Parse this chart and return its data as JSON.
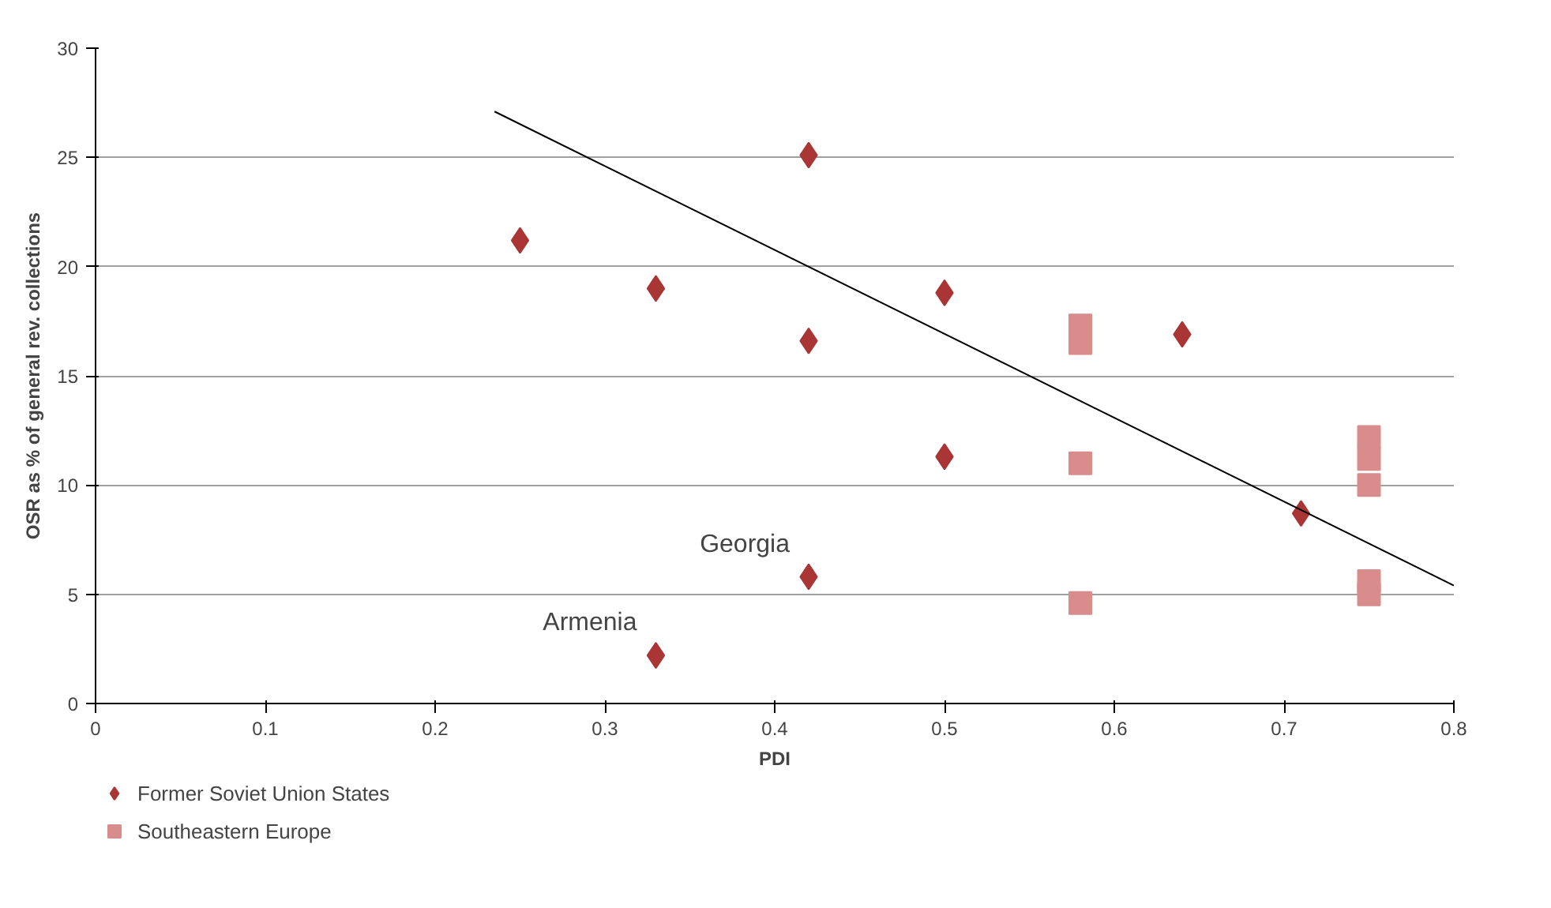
{
  "chart_data": {
    "type": "scatter",
    "xlabel": "PDI",
    "ylabel": "OSR as % of general rev. collections",
    "xlim": [
      0,
      0.8
    ],
    "ylim": [
      0,
      30
    ],
    "xticks": [
      0,
      0.1,
      0.2,
      0.3,
      0.4,
      0.5,
      0.6,
      0.7,
      0.8
    ],
    "yticks": [
      0,
      5,
      10,
      15,
      20,
      25,
      30
    ],
    "grid": "y",
    "legend": "bottom left",
    "series": [
      {
        "name": "Former Soviet Union States",
        "color": "#a93535",
        "marker": "diamond",
        "x": [
          0.25,
          0.33,
          0.42,
          0.42,
          0.5,
          0.64,
          0.5,
          0.71,
          0.42,
          0.33
        ],
        "values": [
          21.2,
          19.0,
          25.1,
          16.6,
          18.8,
          16.9,
          11.3,
          8.7,
          5.8,
          2.2
        ]
      },
      {
        "name": "Southeastern Europe",
        "color": "#d98c8c",
        "marker": "square",
        "x": [
          0.58,
          0.58,
          0.58,
          0.58,
          0.75,
          0.75,
          0.75,
          0.75,
          0.75
        ],
        "values": [
          17.3,
          16.5,
          11.0,
          4.6,
          12.2,
          11.2,
          10.0,
          5.6,
          5.0
        ]
      },
      {
        "type": "line",
        "color": "#000000",
        "marker": "none",
        "x": [
          0.235,
          0.8
        ],
        "values": [
          27.1,
          5.4
        ]
      }
    ],
    "annotations": [
      {
        "text": "Georgia",
        "x": 0.42,
        "y": 5.8
      },
      {
        "text": "Armenia",
        "x": 0.33,
        "y": 2.2
      }
    ]
  }
}
